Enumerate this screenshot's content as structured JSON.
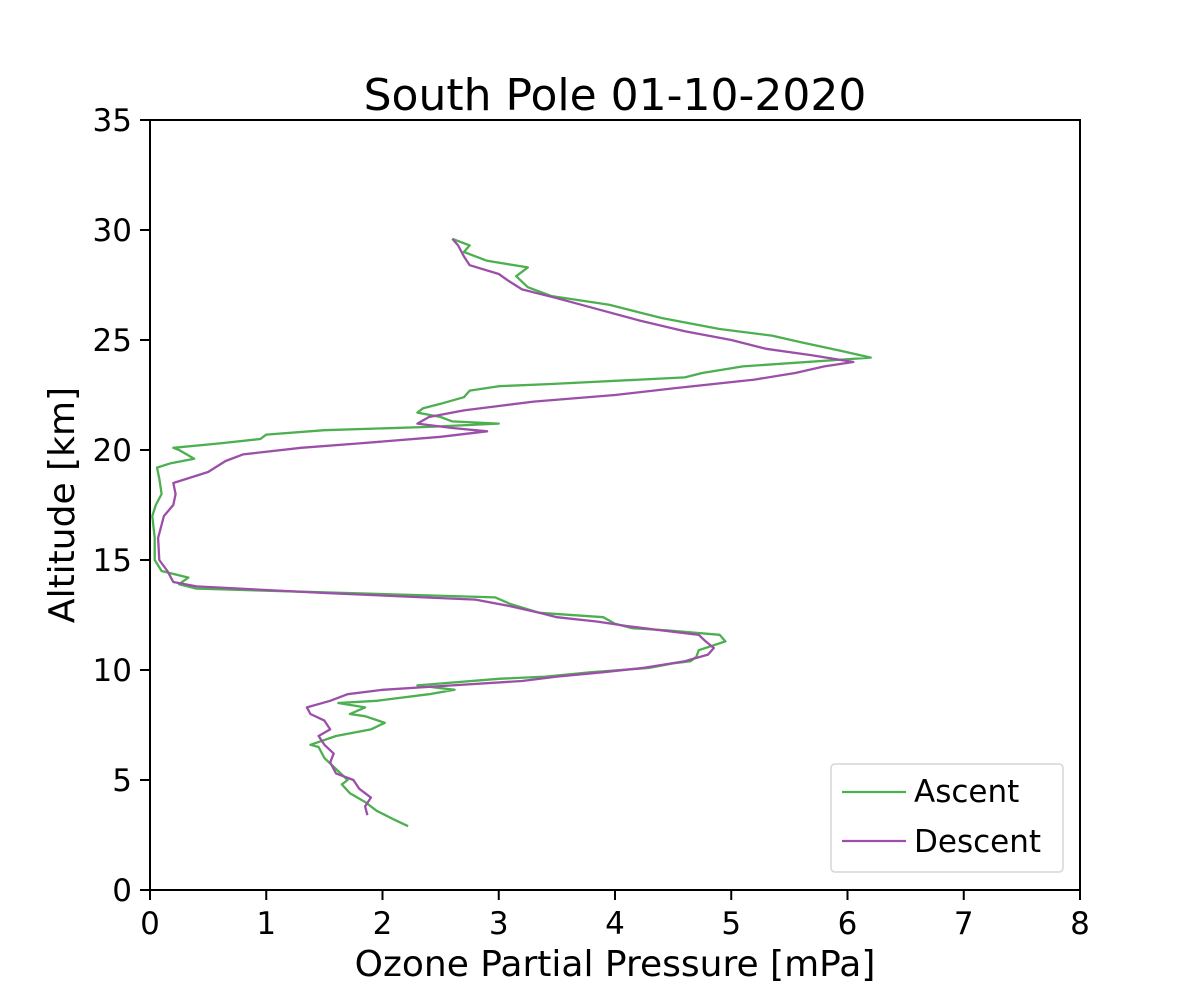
{
  "chart_data": {
    "type": "line",
    "title": "South Pole  01-10-2020",
    "xlabel": "Ozone Partial Pressure [mPa]",
    "ylabel": "Altitude [km]",
    "xlim": [
      0,
      8
    ],
    "ylim": [
      0,
      35
    ],
    "xticks": [
      "0",
      "1",
      "2",
      "3",
      "4",
      "5",
      "6",
      "7",
      "8"
    ],
    "yticks": [
      "0",
      "5",
      "10",
      "15",
      "20",
      "25",
      "30",
      "35"
    ],
    "grid": false,
    "legend_position": "bottom-right",
    "series": [
      {
        "name": "Ascent",
        "color": "#4caf50",
        "points": [
          [
            2.22,
            2.9
          ],
          [
            2.1,
            3.2
          ],
          [
            1.95,
            3.6
          ],
          [
            1.85,
            4.0
          ],
          [
            1.72,
            4.4
          ],
          [
            1.65,
            4.8
          ],
          [
            1.7,
            5.0
          ],
          [
            1.6,
            5.5
          ],
          [
            1.5,
            6.0
          ],
          [
            1.45,
            6.5
          ],
          [
            1.38,
            6.6
          ],
          [
            1.6,
            7.0
          ],
          [
            1.9,
            7.3
          ],
          [
            2.02,
            7.6
          ],
          [
            1.85,
            7.9
          ],
          [
            1.72,
            8.0
          ],
          [
            1.85,
            8.3
          ],
          [
            1.62,
            8.5
          ],
          [
            1.95,
            8.6
          ],
          [
            2.4,
            8.9
          ],
          [
            2.62,
            9.1
          ],
          [
            2.3,
            9.3
          ],
          [
            3.0,
            9.6
          ],
          [
            3.4,
            9.7
          ],
          [
            3.8,
            9.9
          ],
          [
            4.3,
            10.1
          ],
          [
            4.5,
            10.3
          ],
          [
            4.65,
            10.4
          ],
          [
            4.7,
            10.6
          ],
          [
            4.72,
            10.9
          ],
          [
            4.95,
            11.3
          ],
          [
            4.9,
            11.6
          ],
          [
            4.45,
            11.8
          ],
          [
            4.15,
            11.9
          ],
          [
            4.0,
            12.1
          ],
          [
            3.9,
            12.4
          ],
          [
            3.35,
            12.6
          ],
          [
            3.1,
            13.0
          ],
          [
            2.97,
            13.3
          ],
          [
            0.4,
            13.7
          ],
          [
            0.25,
            13.9
          ],
          [
            0.33,
            14.2
          ],
          [
            0.1,
            14.5
          ],
          [
            0.04,
            15.0
          ],
          [
            0.04,
            16.0
          ],
          [
            0.02,
            17.0
          ],
          [
            0.05,
            17.5
          ],
          [
            0.1,
            18.0
          ],
          [
            0.08,
            18.7
          ],
          [
            0.06,
            19.2
          ],
          [
            0.18,
            19.4
          ],
          [
            0.38,
            19.6
          ],
          [
            0.25,
            20.0
          ],
          [
            0.2,
            20.1
          ],
          [
            0.6,
            20.3
          ],
          [
            0.95,
            20.5
          ],
          [
            1.0,
            20.7
          ],
          [
            1.5,
            20.9
          ],
          [
            2.4,
            21.05
          ],
          [
            3.0,
            21.2
          ],
          [
            2.6,
            21.3
          ],
          [
            2.5,
            21.5
          ],
          [
            2.3,
            21.7
          ],
          [
            2.35,
            21.9
          ],
          [
            2.5,
            22.1
          ],
          [
            2.7,
            22.4
          ],
          [
            2.75,
            22.7
          ],
          [
            3.0,
            22.9
          ],
          [
            3.45,
            23.0
          ],
          [
            4.6,
            23.3
          ],
          [
            4.75,
            23.5
          ],
          [
            5.1,
            23.8
          ],
          [
            6.2,
            24.2
          ],
          [
            5.95,
            24.5
          ],
          [
            5.6,
            24.9
          ],
          [
            5.35,
            25.2
          ],
          [
            4.9,
            25.5
          ],
          [
            4.4,
            26.0
          ],
          [
            3.95,
            26.6
          ],
          [
            3.45,
            27.0
          ],
          [
            3.25,
            27.4
          ],
          [
            3.15,
            27.9
          ],
          [
            3.25,
            28.3
          ],
          [
            2.9,
            28.6
          ],
          [
            2.7,
            29.0
          ],
          [
            2.75,
            29.3
          ],
          [
            2.6,
            29.6
          ]
        ]
      },
      {
        "name": "Descent",
        "color": "#9c4fa8",
        "points": [
          [
            1.87,
            3.4
          ],
          [
            1.85,
            3.8
          ],
          [
            1.9,
            4.2
          ],
          [
            1.8,
            4.6
          ],
          [
            1.75,
            5.0
          ],
          [
            1.6,
            5.3
          ],
          [
            1.55,
            5.8
          ],
          [
            1.58,
            6.2
          ],
          [
            1.5,
            6.6
          ],
          [
            1.45,
            7.0
          ],
          [
            1.55,
            7.3
          ],
          [
            1.5,
            7.7
          ],
          [
            1.38,
            8.0
          ],
          [
            1.35,
            8.3
          ],
          [
            1.55,
            8.6
          ],
          [
            1.7,
            8.9
          ],
          [
            2.0,
            9.1
          ],
          [
            2.6,
            9.3
          ],
          [
            3.2,
            9.5
          ],
          [
            3.5,
            9.7
          ],
          [
            3.9,
            9.9
          ],
          [
            4.25,
            10.1
          ],
          [
            4.6,
            10.4
          ],
          [
            4.8,
            10.7
          ],
          [
            4.85,
            11.0
          ],
          [
            4.78,
            11.3
          ],
          [
            4.72,
            11.6
          ],
          [
            4.4,
            11.8
          ],
          [
            4.1,
            12.0
          ],
          [
            3.85,
            12.2
          ],
          [
            3.5,
            12.4
          ],
          [
            3.35,
            12.6
          ],
          [
            3.1,
            12.9
          ],
          [
            2.8,
            13.2
          ],
          [
            1.5,
            13.5
          ],
          [
            0.4,
            13.8
          ],
          [
            0.2,
            14.0
          ],
          [
            0.15,
            14.5
          ],
          [
            0.08,
            15.0
          ],
          [
            0.07,
            16.0
          ],
          [
            0.12,
            17.0
          ],
          [
            0.2,
            17.5
          ],
          [
            0.22,
            18.0
          ],
          [
            0.2,
            18.5
          ],
          [
            0.5,
            19.0
          ],
          [
            0.65,
            19.5
          ],
          [
            0.8,
            19.8
          ],
          [
            1.3,
            20.1
          ],
          [
            1.8,
            20.3
          ],
          [
            2.5,
            20.6
          ],
          [
            2.9,
            20.85
          ],
          [
            2.6,
            21.0
          ],
          [
            2.3,
            21.2
          ],
          [
            2.4,
            21.5
          ],
          [
            2.7,
            21.8
          ],
          [
            3.0,
            22.0
          ],
          [
            3.3,
            22.2
          ],
          [
            4.0,
            22.5
          ],
          [
            4.5,
            22.8
          ],
          [
            5.2,
            23.2
          ],
          [
            5.55,
            23.5
          ],
          [
            5.8,
            23.8
          ],
          [
            6.05,
            24.0
          ],
          [
            5.7,
            24.3
          ],
          [
            5.3,
            24.6
          ],
          [
            5.0,
            25.0
          ],
          [
            4.6,
            25.4
          ],
          [
            4.2,
            25.9
          ],
          [
            3.85,
            26.4
          ],
          [
            3.5,
            26.9
          ],
          [
            3.2,
            27.3
          ],
          [
            3.08,
            27.7
          ],
          [
            3.0,
            28.0
          ],
          [
            2.75,
            28.4
          ],
          [
            2.7,
            28.8
          ],
          [
            2.65,
            29.3
          ],
          [
            2.6,
            29.6
          ]
        ]
      }
    ]
  }
}
